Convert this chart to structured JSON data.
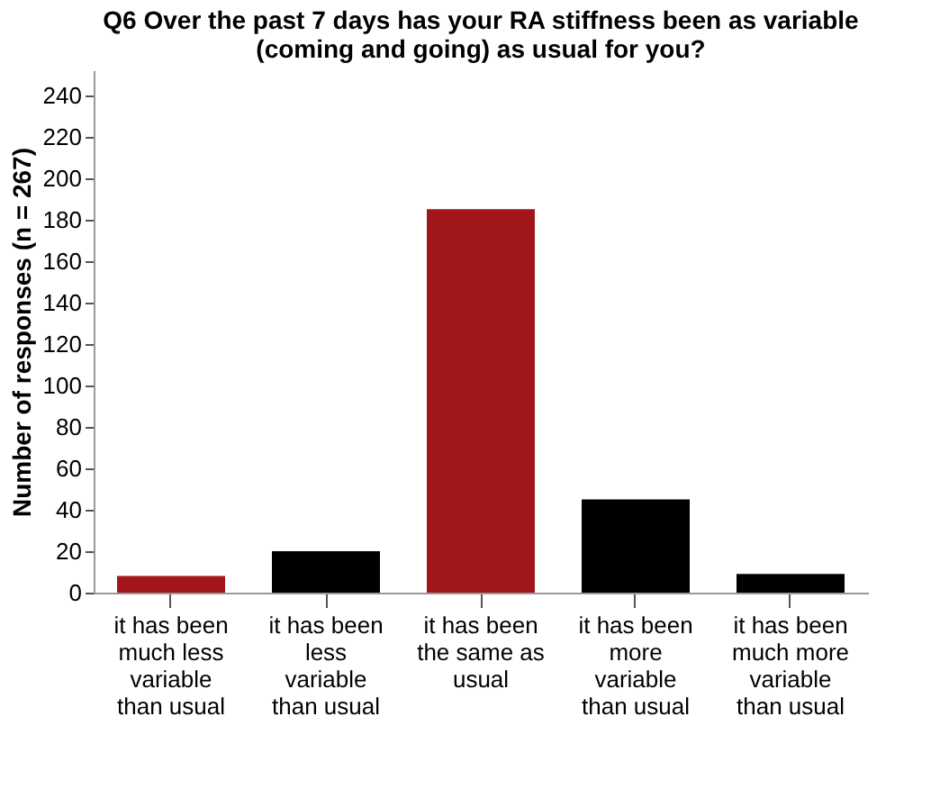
{
  "chart_data": {
    "type": "bar",
    "title": "Q6 Over the past 7 days has your RA stiffness been as variable (coming and going) as usual for you?",
    "ylabel": "Number of responses (n = 267)",
    "categories": [
      "it has been much less variable than usual",
      "it has been less variable than usual",
      "it has been the same as usual",
      "it has been more variable than usual",
      "it has been much more variable than usual"
    ],
    "values": [
      8,
      20,
      185,
      45,
      9
    ],
    "colors": [
      "#a0161b",
      "#000000",
      "#a0161b",
      "#000000",
      "#000000"
    ],
    "ylim": [
      0,
      252
    ],
    "yticks": [
      0,
      20,
      40,
      60,
      80,
      100,
      120,
      140,
      160,
      180,
      200,
      220,
      240
    ],
    "grid": false
  }
}
